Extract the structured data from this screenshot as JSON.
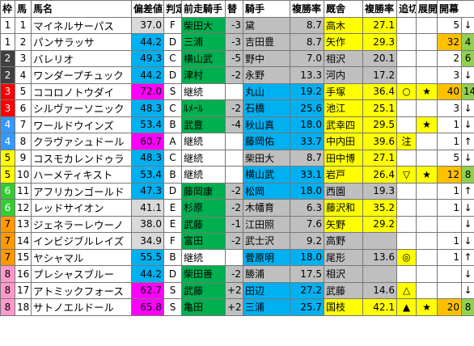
{
  "headers": [
    "枠",
    "馬",
    "馬名",
    "偏差値",
    "判定",
    "前走騎手",
    "替",
    "騎手",
    "複勝率",
    "厩舎",
    "複勝率",
    "追切",
    "展開",
    "開幕"
  ],
  "rows": [
    {
      "waku": "1",
      "num": "1",
      "name": "マイネルサーパス",
      "dev": "37.0",
      "grade": "F",
      "prev": "柴田大",
      "chg": "-3",
      "jockey": "黛",
      "jrate": "8.7",
      "stable": "高木",
      "srate": "27.1",
      "oikiri": "",
      "tenkai": "",
      "kaimaku": "5",
      "arrow": "↓"
    },
    {
      "waku": "1",
      "num": "2",
      "name": "パンサラッサ",
      "dev": "44.2",
      "grade": "D",
      "prev": "三浦",
      "chg": "-3",
      "jockey": "吉田豊",
      "jrate": "8.7",
      "stable": "矢作",
      "srate": "29.3",
      "oikiri": "",
      "tenkai": "",
      "kaimaku": "32",
      "arrow": "4"
    },
    {
      "waku": "2",
      "num": "3",
      "name": "バレリオ",
      "dev": "49.3",
      "grade": "C",
      "prev": "横山武",
      "chg": "-5",
      "jockey": "野中",
      "jrate": "7.0",
      "stable": "相沢",
      "srate": "20.1",
      "oikiri": "",
      "tenkai": "",
      "kaimaku": "2",
      "arrow": "6"
    },
    {
      "waku": "2",
      "num": "4",
      "name": "ワンダープチュック",
      "dev": "44.2",
      "grade": "D",
      "prev": "津村",
      "chg": "-2",
      "jockey": "永野",
      "jrate": "13.3",
      "stable": "河内",
      "srate": "17.2",
      "oikiri": "",
      "tenkai": "",
      "kaimaku": "3",
      "arrow": "↓"
    },
    {
      "waku": "3",
      "num": "5",
      "name": "ココロノトウダイ",
      "dev": "72.0",
      "grade": "S",
      "prev": "継続",
      "chg": "",
      "jockey": "丸山",
      "jrate": "19.2",
      "stable": "手塚",
      "srate": "36.4",
      "oikiri": "○",
      "tenkai": "★",
      "kaimaku": "40",
      "arrow": "14"
    },
    {
      "waku": "3",
      "num": "6",
      "name": "シルヴァーソニック",
      "dev": "48.3",
      "grade": "C",
      "prev": "ﾙﾒｰﾙ",
      "chg": "-2",
      "jockey": "石橋",
      "jrate": "25.6",
      "stable": "池江",
      "srate": "25.1",
      "oikiri": "",
      "tenkai": "",
      "kaimaku": "3",
      "arrow": "↓"
    },
    {
      "waku": "4",
      "num": "7",
      "name": "ワールドウインズ",
      "dev": "53.4",
      "grade": "B",
      "prev": "武豊",
      "chg": "-4",
      "jockey": "秋山真",
      "jrate": "18.0",
      "stable": "武幸四",
      "srate": "29.5",
      "oikiri": "",
      "tenkai": "★",
      "kaimaku": "1",
      "arrow": "↓"
    },
    {
      "waku": "4",
      "num": "8",
      "name": "クラヴァシュドール",
      "dev": "60.7",
      "grade": "A",
      "prev": "継続",
      "chg": "",
      "jockey": "藤岡佑",
      "jrate": "33.7",
      "stable": "中内田",
      "srate": "39.6",
      "oikiri": "注",
      "tenkai": "",
      "kaimaku": "1",
      "arrow": "↑"
    },
    {
      "waku": "5",
      "num": "9",
      "name": "コスモカレンドゥラ",
      "dev": "48.3",
      "grade": "C",
      "prev": "継続",
      "chg": "",
      "jockey": "柴田大",
      "jrate": "8.7",
      "stable": "田中博",
      "srate": "27.1",
      "oikiri": "",
      "tenkai": "",
      "kaimaku": "5",
      "arrow": "↓"
    },
    {
      "waku": "5",
      "num": "10",
      "name": "ハーメティキスト",
      "dev": "53.4",
      "grade": "B",
      "prev": "継続",
      "chg": "",
      "jockey": "横山武",
      "jrate": "33.1",
      "stable": "岩戸",
      "srate": "26.4",
      "oikiri": "▽",
      "tenkai": "★",
      "kaimaku": "12",
      "arrow": "8"
    },
    {
      "waku": "6",
      "num": "11",
      "name": "アフリカンゴールド",
      "dev": "47.3",
      "grade": "D",
      "prev": "藤岡康",
      "chg": "-2",
      "jockey": "松岡",
      "jrate": "18.0",
      "stable": "西園",
      "srate": "19.3",
      "oikiri": "",
      "tenkai": "",
      "kaimaku": "1",
      "arrow": "↑"
    },
    {
      "waku": "6",
      "num": "12",
      "name": "レッドサイオン",
      "dev": "41.1",
      "grade": "E",
      "prev": "杉原",
      "chg": "-2",
      "jockey": "木幡育",
      "jrate": "6.3",
      "stable": "藤沢和",
      "srate": "35.2",
      "oikiri": "",
      "tenkai": "",
      "kaimaku": "1",
      "arrow": "↓"
    },
    {
      "waku": "7",
      "num": "13",
      "name": "ジェネラーレウーノ",
      "dev": "38.0",
      "grade": "E",
      "prev": "武藤",
      "chg": "-1",
      "jockey": "江田照",
      "jrate": "7.6",
      "stable": "矢野",
      "srate": "29.2",
      "oikiri": "",
      "tenkai": "",
      "kaimaku": "",
      "arrow": "↓"
    },
    {
      "waku": "7",
      "num": "14",
      "name": "インビジブルレイズ",
      "dev": "34.9",
      "grade": "F",
      "prev": "富田",
      "chg": "-2",
      "jockey": "武士沢",
      "jrate": "9.2",
      "stable": "高野",
      "srate": "",
      "oikiri": "",
      "tenkai": "",
      "kaimaku": "1",
      "arrow": "↓"
    },
    {
      "waku": "7",
      "num": "15",
      "name": "ヤシャマル",
      "dev": "55.5",
      "grade": "B",
      "prev": "継続",
      "chg": "",
      "jockey": "菅原明",
      "jrate": "18.0",
      "stable": "尾形",
      "srate": "13.6",
      "oikiri": "◎",
      "tenkai": "",
      "kaimaku": "1",
      "arrow": "↑"
    },
    {
      "waku": "8",
      "num": "16",
      "name": "プレシャスブルー",
      "dev": "44.2",
      "grade": "D",
      "prev": "柴田善",
      "chg": "-2",
      "jockey": "勝浦",
      "jrate": "17.5",
      "stable": "相沢",
      "srate": "",
      "oikiri": "",
      "tenkai": "",
      "kaimaku": "",
      "arrow": "↓"
    },
    {
      "waku": "8",
      "num": "17",
      "name": "アトミックフォース",
      "dev": "62.7",
      "grade": "S",
      "prev": "武藤",
      "chg": "+2",
      "jockey": "田辺",
      "jrate": "27.2",
      "stable": "武藤",
      "srate": "14.6",
      "oikiri": "△",
      "tenkai": "",
      "kaimaku": "",
      "arrow": "↓"
    },
    {
      "waku": "8",
      "num": "18",
      "name": "サトノエルドール",
      "dev": "65.8",
      "grade": "S",
      "prev": "亀田",
      "chg": "+2",
      "jockey": "三浦",
      "jrate": "25.7",
      "stable": "国枝",
      "srate": "42.1",
      "oikiri": "▲",
      "tenkai": "★",
      "kaimaku": "20",
      "arrow": "8"
    }
  ],
  "colors": {
    "devHigh": "#ff00ff",
    "devMid": "#00b0f0",
    "accent": "#ffff00"
  }
}
